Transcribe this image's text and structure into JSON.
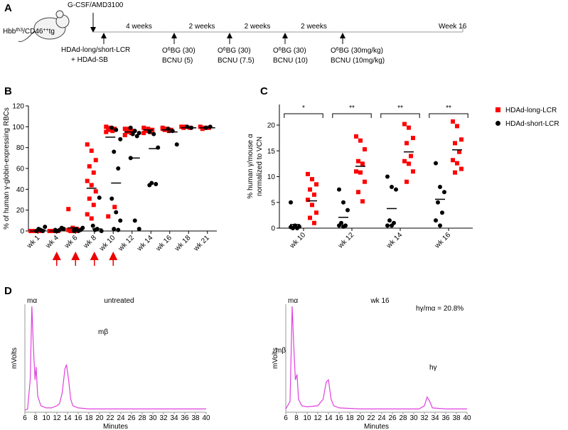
{
  "panel_labels": [
    "A",
    "B",
    "C",
    "D"
  ],
  "timeline": {
    "mouse_label": [
      "Hbb",
      "th3",
      "/CD46",
      "++",
      "tg"
    ],
    "mobilization": "G-CSF/AMD3100",
    "injection": [
      "HDAd-long/short-LCR",
      "+ HDAd-SB"
    ],
    "intervals": [
      "4 weeks",
      "2 weeks",
      "2 weeks",
      "2 weeks"
    ],
    "end": "Week 16",
    "treatments": [
      {
        "line1": [
          "O",
          "6",
          "BG (30)"
        ],
        "line2": "BCNU (5)"
      },
      {
        "line1": [
          "O",
          "6",
          "BG (30)"
        ],
        "line2": "BCNU (7.5)"
      },
      {
        "line1": [
          "O",
          "6",
          "BG (30)"
        ],
        "line2": "BCNU (10)"
      },
      {
        "line1": [
          "O",
          "6",
          "BG (30mg/kg)"
        ],
        "line2": "BCNU (10mg/kg)"
      }
    ]
  },
  "chart_data": [
    {
      "type": "dot",
      "y_label": [
        "% of human γ-globin-expressing RBCs"
      ],
      "categories": [
        "wk 1",
        "wk 4",
        "wk 6",
        "wk 8",
        "wk 10",
        "wk 12",
        "wk 14",
        "wk 16",
        "wk 18",
        "wk 21"
      ],
      "ylim": [
        0,
        120
      ],
      "yticks": [
        0,
        20,
        40,
        60,
        80,
        100,
        120
      ],
      "series": [
        {
          "color": "#ff0000",
          "marker": "square",
          "values": [
            [
              0,
              0,
              0,
              0,
              0,
              0,
              0,
              0
            ],
            [
              0,
              0,
              0,
              0,
              0,
              0,
              0
            ],
            [
              21,
              3,
              2,
              0,
              0,
              1,
              0
            ],
            [
              83,
              77,
              68,
              62,
              56,
              48,
              44,
              38,
              31,
              25,
              16,
              12
            ],
            [
              100,
              99,
              98,
              97,
              96,
              95,
              98,
              23,
              14
            ],
            [
              98,
              97,
              96,
              95,
              94,
              92,
              98
            ],
            [
              99,
              98,
              97,
              96,
              95,
              94
            ],
            [
              99,
              98,
              97,
              97,
              96,
              98
            ],
            [
              100,
              100,
              99,
              99
            ],
            [
              100,
              99,
              99,
              98
            ]
          ],
          "means": [
            0,
            0,
            3,
            41,
            90,
            95,
            97,
            97,
            99,
            99
          ]
        },
        {
          "color": "#000000",
          "marker": "circle",
          "values": [
            [
              0,
              1,
              4,
              2,
              0
            ],
            [
              0,
              1,
              2,
              0,
              3,
              1
            ],
            [
              1,
              0,
              3,
              2,
              1,
              0
            ],
            [
              5,
              2,
              0,
              1,
              32
            ],
            [
              99,
              97,
              88,
              76,
              60,
              31,
              18,
              10,
              2,
              1
            ],
            [
              99,
              96,
              94,
              93,
              91,
              70,
              10,
              2
            ],
            [
              95,
              93,
              80,
              46,
              45,
              44
            ],
            [
              98,
              96,
              83
            ],
            [
              100,
              99
            ],
            [
              99,
              100
            ]
          ],
          "means": [
            1,
            1,
            1,
            2,
            46,
            70,
            79,
            95,
            99,
            99
          ]
        }
      ]
    },
    {
      "type": "dot",
      "y_label": [
        "% human γ/mouse α",
        "normalized to VCN"
      ],
      "categories": [
        "wk 10",
        "wk 12",
        "wk 14",
        "wk 16"
      ],
      "ylim": [
        0,
        24
      ],
      "yticks": [
        0,
        5,
        10,
        15,
        20
      ],
      "significance": [
        "*",
        "**",
        "**",
        "**"
      ],
      "legend": "right",
      "series": [
        {
          "name": "HDAd-long-LCR",
          "color": "#ff0000",
          "marker": "square",
          "values": [
            [
              10.5,
              9.5,
              8.5,
              7.5,
              6.5,
              5.5,
              4.5,
              3,
              2,
              1
            ],
            [
              17.8,
              17,
              15.3,
              13,
              12.5,
              11,
              10.8,
              9,
              7,
              5.2
            ],
            [
              20.2,
              19.5,
              17.5,
              16.5,
              14,
              13,
              12.5,
              11,
              9
            ],
            [
              20.7,
              19.8,
              17.2,
              16.5,
              14.8,
              13.2,
              12.6,
              11.5,
              10.8
            ]
          ],
          "means": [
            5.3,
            12,
            14.8,
            15.2
          ]
        },
        {
          "name": "HDAd-short-LCR",
          "color": "#000000",
          "marker": "circle",
          "values": [
            [
              5,
              0.5,
              0.3,
              0,
              0,
              0.2,
              0.4
            ],
            [
              7.5,
              5,
              3.5,
              1,
              0.5,
              0.5,
              0.3
            ],
            [
              10,
              8,
              7.5,
              1.5,
              1,
              0.5,
              0.5
            ],
            [
              12.6,
              8,
              7,
              5,
              3,
              1.5,
              0.5
            ]
          ],
          "means": [
            0.7,
            2.1,
            3.8,
            5.6
          ]
        }
      ]
    },
    {
      "type": "line",
      "title": "untreated",
      "x_label": "Minutes",
      "y_label": "mVolts",
      "xlim": [
        6,
        40
      ],
      "xticks": [
        6,
        8,
        10,
        12,
        14,
        16,
        18,
        20,
        22,
        24,
        26,
        28,
        30,
        32,
        34,
        36,
        38,
        40
      ],
      "ylim": [
        0,
        100
      ],
      "color": "#e040e0",
      "peak_labels": [
        "mα",
        "mβ"
      ],
      "x": [
        6,
        6.5,
        7,
        7.3,
        7.6,
        7.9,
        8.1,
        8.4,
        9,
        10,
        11,
        12,
        12.5,
        13,
        13.5,
        13.8,
        14.2,
        14.6,
        15,
        16,
        18,
        20,
        24,
        28,
        32,
        36,
        40
      ],
      "values": [
        2,
        3,
        30,
        98,
        60,
        30,
        42,
        15,
        6,
        4,
        4,
        6,
        8,
        18,
        40,
        44,
        30,
        12,
        6,
        4,
        3,
        3,
        3,
        3,
        3,
        3,
        3
      ]
    },
    {
      "type": "line",
      "title": "wk 16",
      "x_label": "Minutes",
      "y_label": "mVolts",
      "xlim": [
        6,
        40
      ],
      "xticks": [
        6,
        8,
        10,
        12,
        14,
        16,
        18,
        20,
        22,
        24,
        26,
        28,
        30,
        32,
        34,
        36,
        38,
        40
      ],
      "ylim": [
        0,
        100
      ],
      "color": "#e040e0",
      "peak_labels": [
        "mα",
        "mβ",
        "hγ"
      ],
      "annotation": "hγ/mα = 20.8%",
      "x": [
        6,
        6.8,
        7.2,
        7.5,
        7.8,
        8.1,
        8.4,
        9,
        10,
        12,
        13,
        13.6,
        14,
        14.5,
        15,
        16,
        20,
        24,
        28,
        31,
        32,
        32.5,
        33,
        33.5,
        36,
        40
      ],
      "values": [
        3,
        10,
        98,
        60,
        30,
        35,
        12,
        6,
        5,
        6,
        12,
        28,
        30,
        12,
        6,
        4,
        3,
        3,
        3,
        3,
        6,
        14,
        10,
        4,
        3,
        3
      ]
    }
  ]
}
